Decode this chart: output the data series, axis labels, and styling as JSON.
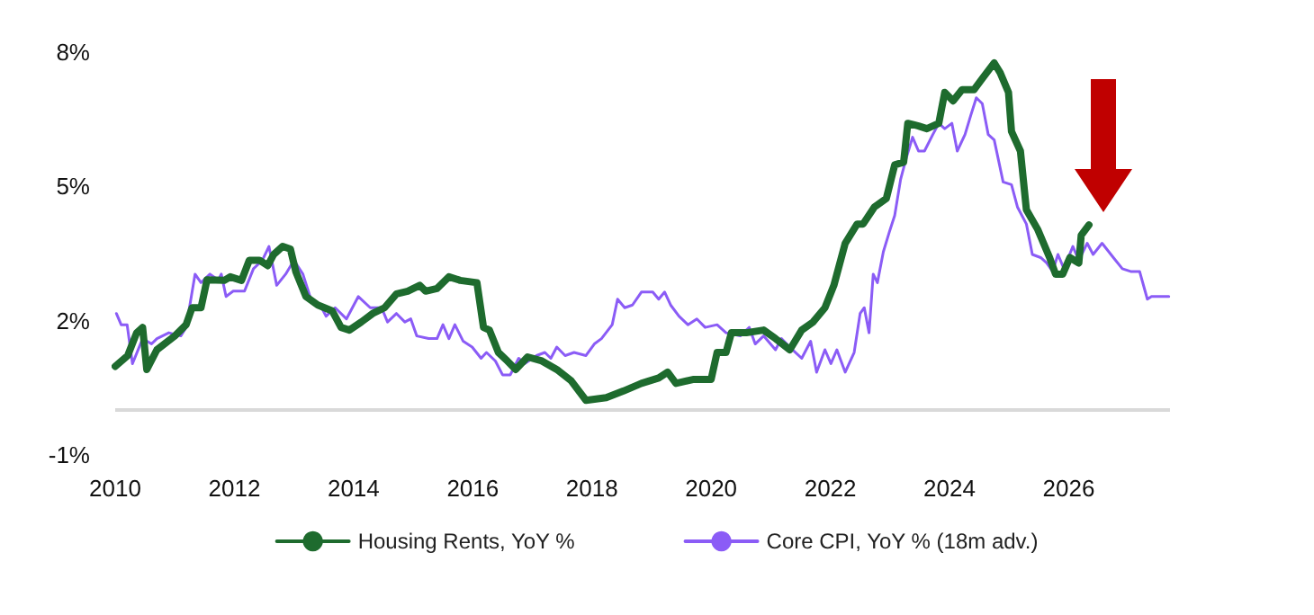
{
  "chart_data": {
    "type": "line",
    "xlim": [
      2010,
      2027.7
    ],
    "xticks": [
      2010,
      2012,
      2014,
      2016,
      2018,
      2020,
      2022,
      2024,
      2026
    ],
    "ylim": [
      -1,
      8
    ],
    "yticks": [
      {
        "value": -1,
        "label": "-1%"
      },
      {
        "value": 2,
        "label": "2%"
      },
      {
        "value": 5,
        "label": "5%"
      },
      {
        "value": 8,
        "label": "8%"
      }
    ],
    "grid": false,
    "legend": "bottom",
    "marker": "none",
    "line_style": "solid",
    "ref_lines": [
      {
        "axis": "y",
        "value": 0,
        "color": "#d9d9d9"
      }
    ],
    "series": [
      {
        "name": "Housing Rents, YoY %",
        "color": "#1e6b2e",
        "x": [
          2010.0,
          2010.21,
          2010.36,
          2010.46,
          2010.53,
          2010.7,
          2011.0,
          2011.19,
          2011.29,
          2011.44,
          2011.54,
          2011.83,
          2011.93,
          2012.12,
          2012.25,
          2012.42,
          2012.56,
          2012.66,
          2012.81,
          2012.94,
          2013.03,
          2013.2,
          2013.4,
          2013.64,
          2013.79,
          2013.93,
          2014.13,
          2014.32,
          2014.52,
          2014.72,
          2014.91,
          2015.11,
          2015.21,
          2015.4,
          2015.6,
          2015.79,
          2016.07,
          2016.18,
          2016.28,
          2016.43,
          2016.58,
          2016.72,
          2016.92,
          2017.16,
          2017.41,
          2017.65,
          2017.9,
          2018.24,
          2018.53,
          2018.83,
          2019.12,
          2019.27,
          2019.41,
          2019.71,
          2020.0,
          2020.1,
          2020.25,
          2020.34,
          2020.59,
          2020.88,
          2021.08,
          2021.32,
          2021.52,
          2021.71,
          2021.91,
          2022.06,
          2022.25,
          2022.45,
          2022.55,
          2022.74,
          2022.94,
          2023.08,
          2023.23,
          2023.3,
          2023.48,
          2023.62,
          2023.82,
          2023.92,
          2024.06,
          2024.21,
          2024.41,
          2024.55,
          2024.75,
          2024.85,
          2024.99,
          2025.04,
          2025.19,
          2025.29,
          2025.48,
          2025.68,
          2025.78,
          2025.9,
          2026.02,
          2026.17,
          2026.21,
          2026.34
        ],
        "values": [
          0.98,
          1.22,
          1.73,
          1.85,
          0.91,
          1.35,
          1.66,
          1.91,
          2.29,
          2.29,
          2.91,
          2.9,
          2.98,
          2.9,
          3.35,
          3.35,
          3.23,
          3.48,
          3.66,
          3.6,
          3.1,
          2.54,
          2.35,
          2.22,
          1.85,
          1.79,
          1.97,
          2.16,
          2.29,
          2.6,
          2.66,
          2.79,
          2.66,
          2.72,
          2.98,
          2.9,
          2.85,
          1.85,
          1.79,
          1.29,
          1.1,
          0.91,
          1.19,
          1.1,
          0.91,
          0.66,
          0.22,
          0.28,
          0.43,
          0.6,
          0.72,
          0.85,
          0.6,
          0.69,
          0.69,
          1.29,
          1.29,
          1.73,
          1.73,
          1.79,
          1.6,
          1.35,
          1.79,
          1.97,
          2.29,
          2.79,
          3.73,
          4.16,
          4.16,
          4.54,
          4.73,
          5.48,
          5.54,
          6.41,
          6.35,
          6.29,
          6.41,
          7.1,
          6.91,
          7.16,
          7.16,
          7.41,
          7.76,
          7.54,
          7.1,
          6.23,
          5.79,
          4.48,
          4.04,
          3.41,
          3.04,
          3.04,
          3.41,
          3.29,
          3.91,
          4.14
        ]
      },
      {
        "name": "Core CPI, YoY % (18m adv.)",
        "color": "#8b5cf6",
        "x": [
          2010.02,
          2010.1,
          2010.2,
          2010.29,
          2010.46,
          2010.61,
          2010.7,
          2010.9,
          2011.1,
          2011.19,
          2011.34,
          2011.44,
          2011.59,
          2011.73,
          2011.78,
          2011.86,
          2011.98,
          2012.17,
          2012.32,
          2012.47,
          2012.58,
          2012.71,
          2012.86,
          2013.0,
          2013.15,
          2013.3,
          2013.44,
          2013.54,
          2013.69,
          2013.88,
          2014.08,
          2014.28,
          2014.47,
          2014.57,
          2014.72,
          2014.86,
          2014.96,
          2015.06,
          2015.26,
          2015.4,
          2015.5,
          2015.6,
          2015.7,
          2015.84,
          2015.99,
          2016.14,
          2016.23,
          2016.38,
          2016.5,
          2016.63,
          2016.77,
          2016.87,
          2017.07,
          2017.21,
          2017.31,
          2017.41,
          2017.55,
          2017.7,
          2017.9,
          2018.04,
          2018.16,
          2018.34,
          2018.43,
          2018.55,
          2018.68,
          2018.83,
          2019.02,
          2019.12,
          2019.22,
          2019.32,
          2019.46,
          2019.61,
          2019.76,
          2019.9,
          2020.1,
          2020.25,
          2020.49,
          2020.64,
          2020.74,
          2020.88,
          2021.08,
          2021.18,
          2021.32,
          2021.52,
          2021.67,
          2021.77,
          2021.91,
          2022.01,
          2022.11,
          2022.25,
          2022.4,
          2022.5,
          2022.57,
          2022.65,
          2022.72,
          2022.79,
          2022.89,
          2022.99,
          2023.08,
          2023.18,
          2023.28,
          2023.38,
          2023.48,
          2023.58,
          2023.72,
          2023.82,
          2023.92,
          2024.04,
          2024.13,
          2024.26,
          2024.36,
          2024.45,
          2024.55,
          2024.65,
          2024.75,
          2024.9,
          2025.04,
          2025.14,
          2025.29,
          2025.39,
          2025.53,
          2025.63,
          2025.73,
          2025.82,
          2025.92,
          2026.07,
          2026.17,
          2026.31,
          2026.41,
          2026.56,
          2026.75,
          2026.9,
          2027.04,
          2027.19,
          2027.32,
          2027.39,
          2027.68
        ],
        "values": [
          2.16,
          1.91,
          1.91,
          1.04,
          1.6,
          1.48,
          1.6,
          1.73,
          1.66,
          1.85,
          3.04,
          2.85,
          3.04,
          2.91,
          3.04,
          2.54,
          2.66,
          2.66,
          3.16,
          3.35,
          3.66,
          2.79,
          3.04,
          3.35,
          3.04,
          2.41,
          2.35,
          2.1,
          2.29,
          2.04,
          2.54,
          2.29,
          2.29,
          1.97,
          2.16,
          1.97,
          2.04,
          1.66,
          1.6,
          1.6,
          1.91,
          1.6,
          1.91,
          1.54,
          1.41,
          1.16,
          1.29,
          1.1,
          0.79,
          0.79,
          1.16,
          1.04,
          1.22,
          1.29,
          1.16,
          1.41,
          1.22,
          1.29,
          1.22,
          1.48,
          1.6,
          1.91,
          2.48,
          2.29,
          2.35,
          2.64,
          2.64,
          2.48,
          2.64,
          2.35,
          2.1,
          1.91,
          2.04,
          1.85,
          1.91,
          1.73,
          1.66,
          1.85,
          1.48,
          1.66,
          1.35,
          1.6,
          1.41,
          1.16,
          1.54,
          0.85,
          1.35,
          1.04,
          1.35,
          0.85,
          1.29,
          2.16,
          2.29,
          1.73,
          3.04,
          2.85,
          3.54,
          3.98,
          4.35,
          5.16,
          5.66,
          6.1,
          5.79,
          5.79,
          6.16,
          6.41,
          6.29,
          6.41,
          5.79,
          6.16,
          6.6,
          6.98,
          6.85,
          6.16,
          6.04,
          5.1,
          5.04,
          4.54,
          4.16,
          3.48,
          3.41,
          3.29,
          3.1,
          3.48,
          3.16,
          3.66,
          3.35,
          3.73,
          3.48,
          3.73,
          3.41,
          3.16,
          3.1,
          3.1,
          2.48,
          2.54,
          2.54
        ]
      }
    ]
  }
}
